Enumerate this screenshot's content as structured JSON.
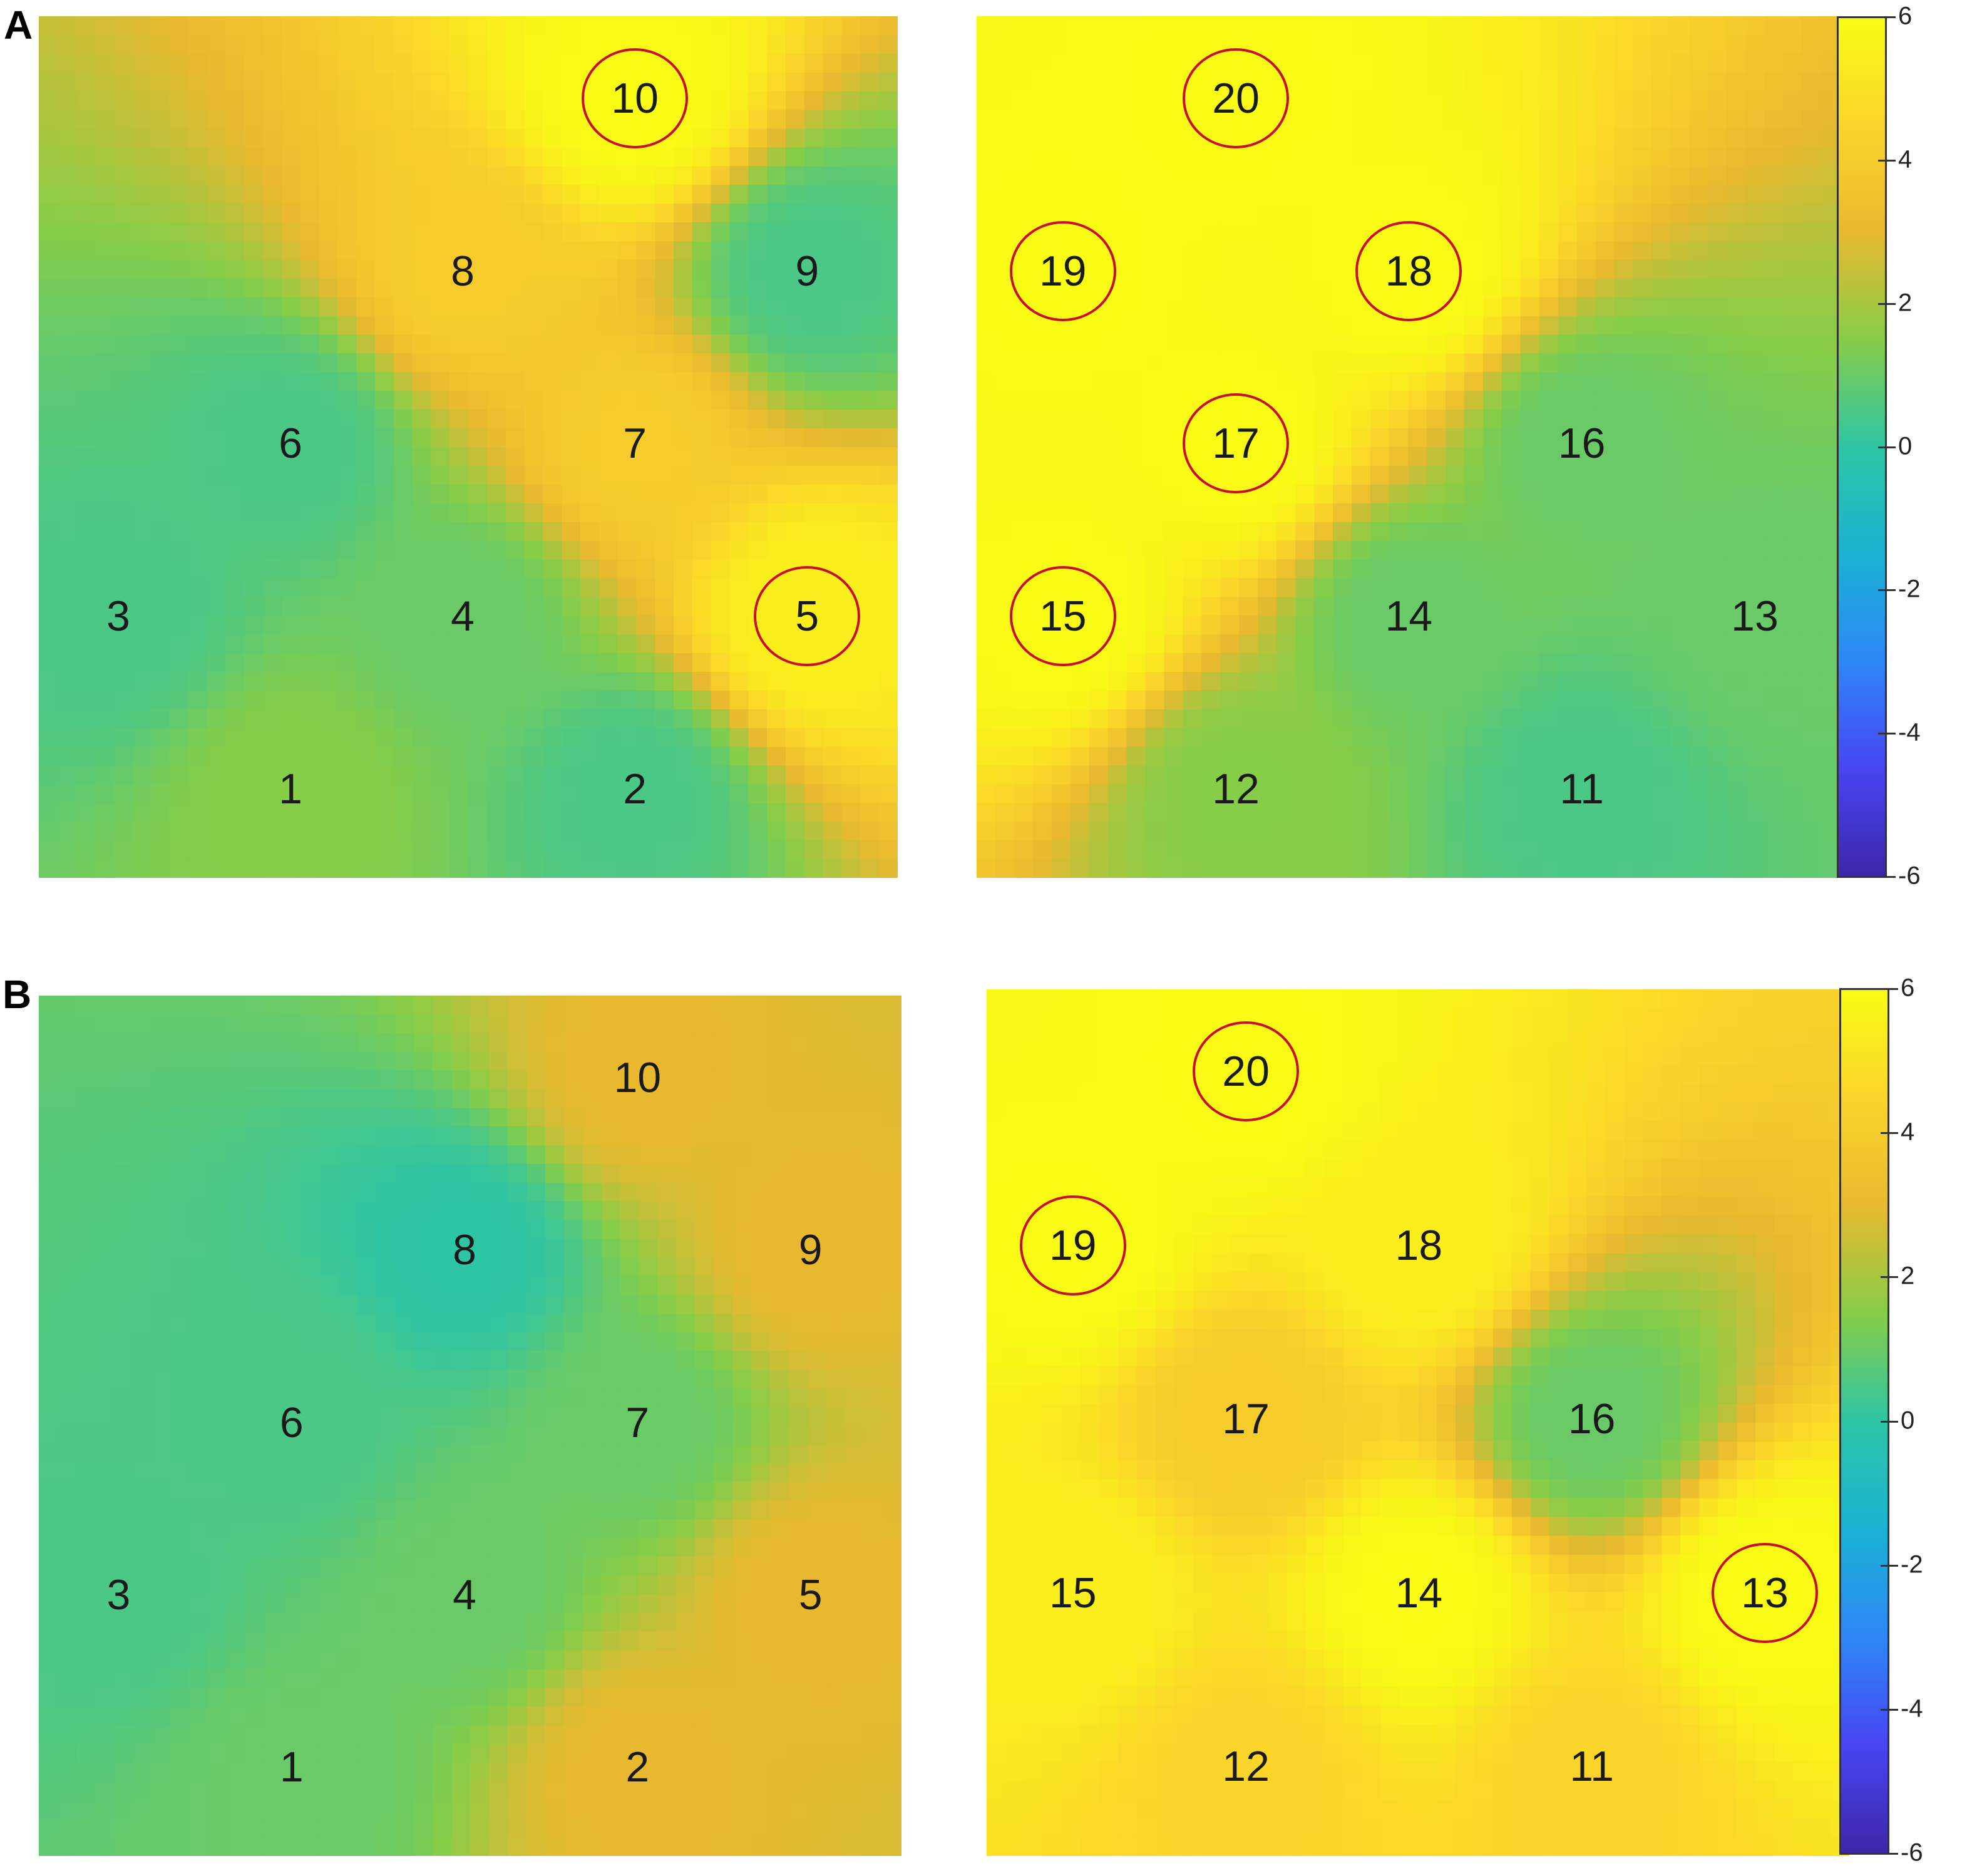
{
  "panels": [
    {
      "letter": "A"
    },
    {
      "letter": "B"
    }
  ],
  "colormap": {
    "name": "parula",
    "stops": [
      "#3e26a8",
      "#4745f3",
      "#2e87f7",
      "#19b2d3",
      "#2ec5a5",
      "#86cd48",
      "#e8b92f",
      "#fbd52a",
      "#f9fb15"
    ]
  },
  "highlight_color": "#c8102e",
  "chart_data": [
    {
      "type": "heatmap",
      "panel": "A",
      "side": "left",
      "grid": [
        [
          null,
          null,
          "10"
        ],
        [
          "8",
          null,
          "9"
        ],
        [
          "6",
          "7",
          null
        ],
        [
          "3",
          "4",
          "5"
        ],
        [
          "1",
          "2",
          null
        ]
      ],
      "electrodes": [
        {
          "label": "10",
          "col": 2,
          "row": 0,
          "value": 6,
          "highlighted": true
        },
        {
          "label": "8",
          "col": 1,
          "row": 1,
          "value": 4,
          "highlighted": false
        },
        {
          "label": "9",
          "col": 3,
          "row": 1,
          "value": 0.5,
          "highlighted": false
        },
        {
          "label": "6",
          "col": 0,
          "row": 2,
          "value": 0.5,
          "highlighted": false
        },
        {
          "label": "7",
          "col": 2,
          "row": 2,
          "value": 4,
          "highlighted": false
        },
        {
          "label": "3",
          "col": -1,
          "row": 3,
          "value": 0.5,
          "highlighted": false
        },
        {
          "label": "4",
          "col": 1,
          "row": 3,
          "value": 1,
          "highlighted": false
        },
        {
          "label": "5",
          "col": 3,
          "row": 3,
          "value": 5.5,
          "highlighted": true
        },
        {
          "label": "1",
          "col": 0,
          "row": 4,
          "value": 1.5,
          "highlighted": false
        },
        {
          "label": "2",
          "col": 2,
          "row": 4,
          "value": 0.5,
          "highlighted": false
        }
      ]
    },
    {
      "type": "heatmap",
      "panel": "A",
      "side": "right",
      "electrodes": [
        {
          "label": "20",
          "col": 1,
          "row": 0,
          "value": 6,
          "highlighted": true
        },
        {
          "label": "19",
          "col": 0,
          "row": 1,
          "value": 6,
          "highlighted": true
        },
        {
          "label": "18",
          "col": 2,
          "row": 1,
          "value": 6,
          "highlighted": true
        },
        {
          "label": "17",
          "col": 1,
          "row": 2,
          "value": 6,
          "highlighted": true
        },
        {
          "label": "16",
          "col": 3,
          "row": 2,
          "value": 1,
          "highlighted": false
        },
        {
          "label": "15",
          "col": 0,
          "row": 3,
          "value": 6,
          "highlighted": true
        },
        {
          "label": "14",
          "col": 2,
          "row": 3,
          "value": 1,
          "highlighted": false
        },
        {
          "label": "13",
          "col": 4,
          "row": 3,
          "value": 1,
          "highlighted": false
        },
        {
          "label": "12",
          "col": 1,
          "row": 4,
          "value": 1.5,
          "highlighted": false
        },
        {
          "label": "11",
          "col": 3,
          "row": 4,
          "value": 0.5,
          "highlighted": false
        }
      ]
    },
    {
      "type": "heatmap",
      "panel": "B",
      "side": "left",
      "electrodes": [
        {
          "label": "10",
          "col": 2,
          "row": 0,
          "value": 3,
          "highlighted": false
        },
        {
          "label": "8",
          "col": 1,
          "row": 1,
          "value": 0,
          "highlighted": false
        },
        {
          "label": "9",
          "col": 3,
          "row": 1,
          "value": 3,
          "highlighted": false
        },
        {
          "label": "6",
          "col": 0,
          "row": 2,
          "value": 0.5,
          "highlighted": false
        },
        {
          "label": "7",
          "col": 2,
          "row": 2,
          "value": 1,
          "highlighted": false
        },
        {
          "label": "3",
          "col": -1,
          "row": 3,
          "value": 0.5,
          "highlighted": false
        },
        {
          "label": "4",
          "col": 1,
          "row": 3,
          "value": 1,
          "highlighted": false
        },
        {
          "label": "5",
          "col": 3,
          "row": 3,
          "value": 3,
          "highlighted": false
        },
        {
          "label": "1",
          "col": 0,
          "row": 4,
          "value": 1,
          "highlighted": false
        },
        {
          "label": "2",
          "col": 2,
          "row": 4,
          "value": 3,
          "highlighted": false
        }
      ]
    },
    {
      "type": "heatmap",
      "panel": "B",
      "side": "right",
      "electrodes": [
        {
          "label": "20",
          "col": 1,
          "row": 0,
          "value": 6,
          "highlighted": true
        },
        {
          "label": "19",
          "col": 0,
          "row": 1,
          "value": 6,
          "highlighted": true
        },
        {
          "label": "18",
          "col": 2,
          "row": 1,
          "value": 5.5,
          "highlighted": false
        },
        {
          "label": "17",
          "col": 1,
          "row": 2,
          "value": 4,
          "highlighted": false
        },
        {
          "label": "16",
          "col": 3,
          "row": 2,
          "value": 1,
          "highlighted": false
        },
        {
          "label": "15",
          "col": 0,
          "row": 3,
          "value": 5.5,
          "highlighted": false
        },
        {
          "label": "14",
          "col": 2,
          "row": 3,
          "value": 6,
          "highlighted": false
        },
        {
          "label": "13",
          "col": 4,
          "row": 3,
          "value": 6,
          "highlighted": true
        },
        {
          "label": "12",
          "col": 1,
          "row": 4,
          "value": 4.5,
          "highlighted": false
        },
        {
          "label": "11",
          "col": 3,
          "row": 4,
          "value": 4.5,
          "highlighted": false
        }
      ]
    }
  ],
  "colorbars": [
    {
      "panel": "A",
      "range": [
        -6,
        6
      ],
      "ticks": [
        "6",
        "4",
        "2",
        "0",
        "-2",
        "-4",
        "-6"
      ]
    },
    {
      "panel": "B",
      "range": [
        -6,
        6
      ],
      "ticks": [
        "6",
        "4",
        "2",
        "0",
        "-2",
        "-4",
        "-6"
      ]
    }
  ]
}
